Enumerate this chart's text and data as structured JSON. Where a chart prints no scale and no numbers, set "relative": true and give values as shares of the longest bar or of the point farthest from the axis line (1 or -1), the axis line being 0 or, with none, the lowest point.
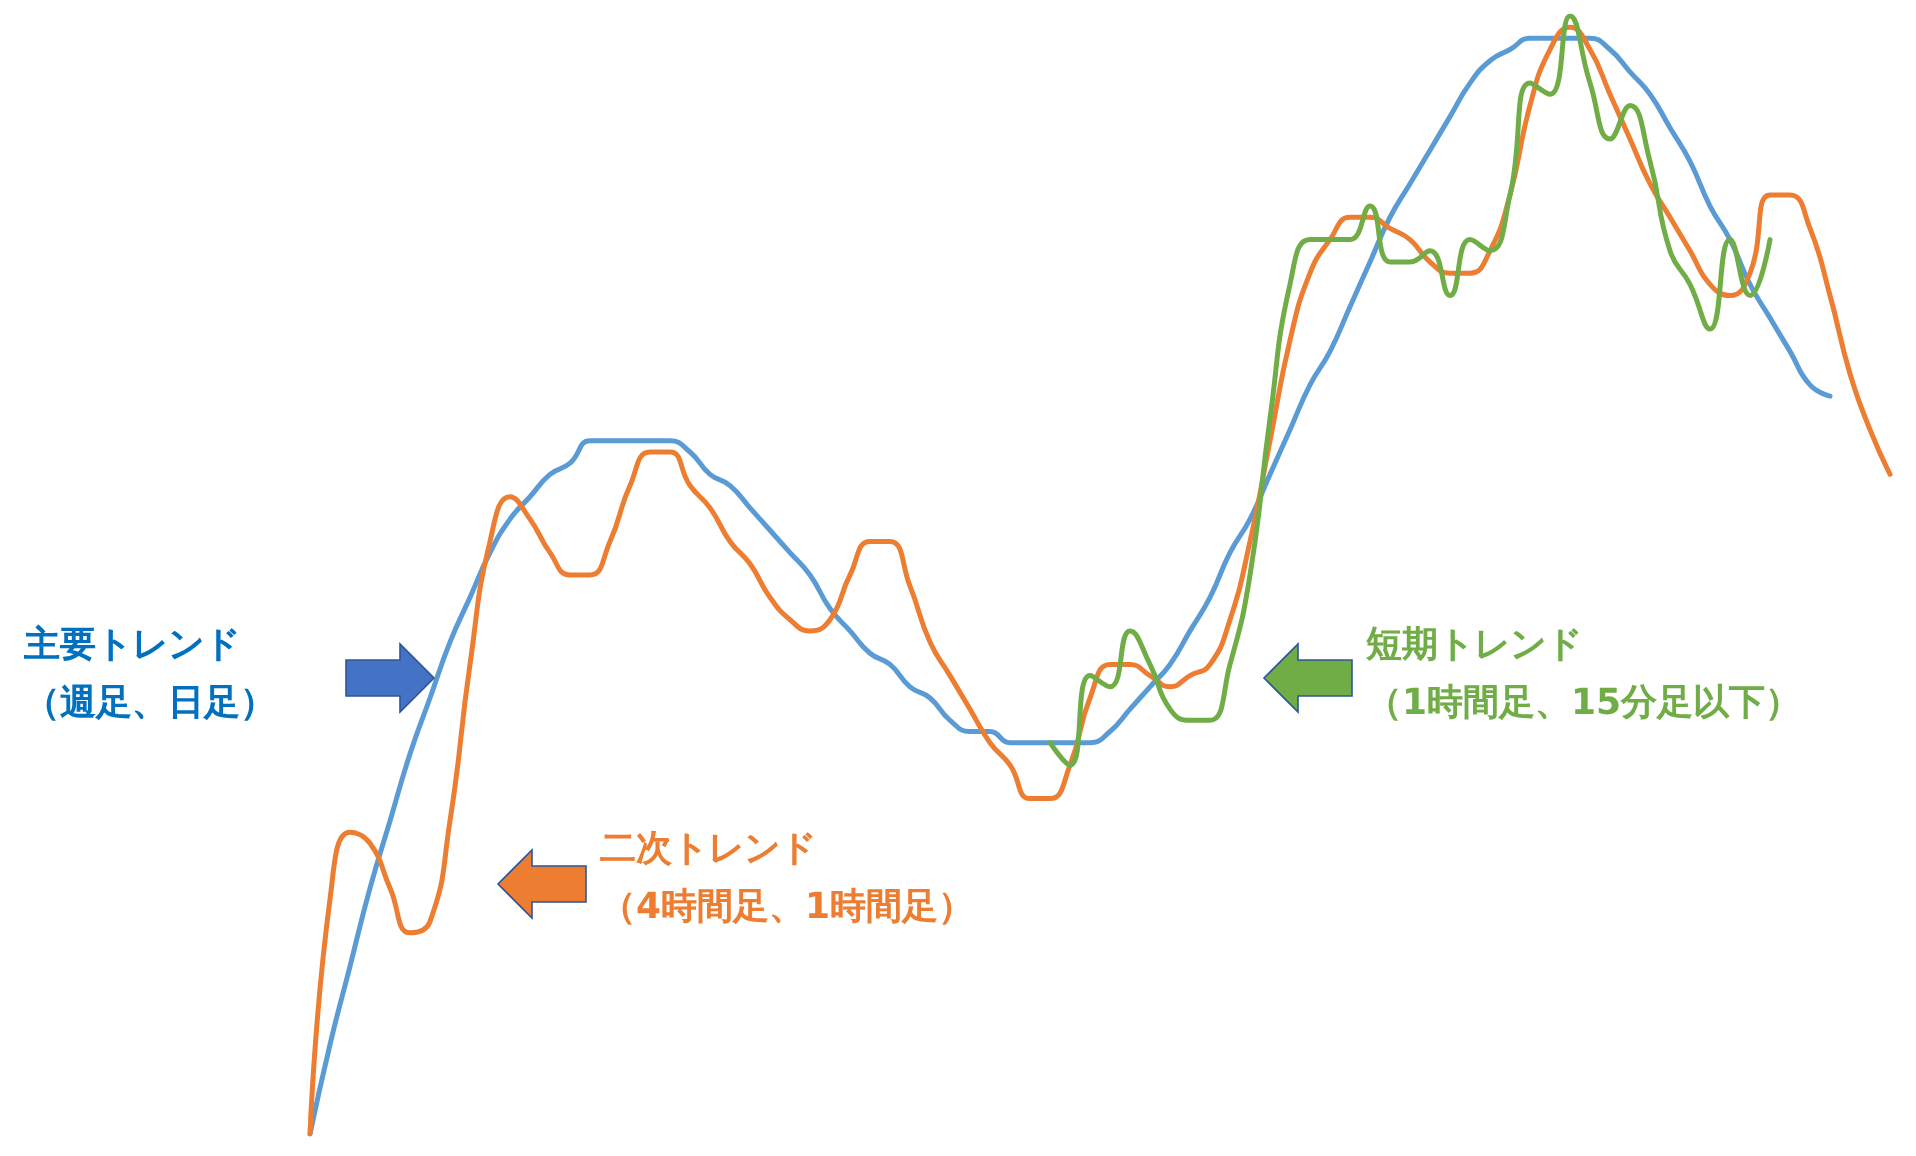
{
  "chart_data": {
    "type": "line",
    "relative": true,
    "marker": "none",
    "line_style": "solid",
    "categories": [
      null,
      null,
      null,
      null,
      null,
      null,
      null,
      null,
      null,
      null,
      null,
      null,
      null,
      null,
      null,
      null,
      null,
      null,
      null,
      null,
      null,
      null,
      null,
      null,
      null,
      null,
      null,
      null,
      null,
      null,
      null,
      null,
      null,
      null,
      null,
      null,
      null,
      null,
      null,
      null,
      null,
      null,
      null,
      null,
      null,
      null,
      null,
      null,
      null,
      null,
      null,
      null,
      null,
      null,
      null,
      null,
      null,
      null,
      null,
      null,
      null,
      null,
      null,
      null,
      null,
      null,
      null,
      null,
      null,
      null,
      null,
      null,
      null,
      null,
      null,
      null,
      null,
      null,
      null,
      null
    ],
    "series": [
      {
        "color": "#5b9bd5",
        "values": [
          0,
          0.08,
          0.15,
          0.22,
          0.28,
          0.34,
          0.39,
          0.44,
          0.48,
          0.52,
          0.55,
          0.57,
          0.59,
          0.6,
          0.62,
          0.62,
          0.62,
          0.62,
          0.62,
          0.61,
          0.59,
          0.58,
          0.56,
          0.54,
          0.52,
          0.5,
          0.47,
          0.45,
          0.43,
          0.42,
          0.4,
          0.39,
          0.37,
          0.36,
          0.36,
          0.35,
          0.35,
          0.35,
          0.35,
          0.35,
          0.36,
          0.38,
          0.4,
          0.42,
          0.45,
          0.48,
          0.52,
          0.55,
          0.59,
          0.63,
          0.67,
          0.7,
          0.74,
          0.78,
          0.82,
          0.85,
          0.88,
          0.91,
          0.94,
          0.96,
          0.97,
          0.98,
          0.98,
          0.98,
          0.98,
          0.97,
          0.95,
          0.93,
          0.9,
          0.87,
          0.83,
          0.8,
          0.76,
          0.73,
          0.7,
          0.67,
          0.66,
          null,
          null,
          null
        ]
      },
      {
        "color": "#ed7d31",
        "values": [
          0,
          0.21,
          0.27,
          0.26,
          0.22,
          0.18,
          0.19,
          0.28,
          0.42,
          0.53,
          0.57,
          0.55,
          0.52,
          0.5,
          0.5,
          0.53,
          0.58,
          0.61,
          0.61,
          0.58,
          0.56,
          0.53,
          0.51,
          0.48,
          0.46,
          0.45,
          0.46,
          0.5,
          0.53,
          0.53,
          0.49,
          0.44,
          0.41,
          0.38,
          0.35,
          0.33,
          0.3,
          0.3,
          0.33,
          0.39,
          0.42,
          0.42,
          0.41,
          0.4,
          0.41,
          0.42,
          0.46,
          0.53,
          0.62,
          0.71,
          0.77,
          0.8,
          0.82,
          0.82,
          0.81,
          0.8,
          0.78,
          0.77,
          0.77,
          0.79,
          0.84,
          0.92,
          0.97,
          0.99,
          0.97,
          0.93,
          0.89,
          0.85,
          0.82,
          0.79,
          0.76,
          0.75,
          0.77,
          0.84,
          0.84,
          0.81,
          0.75,
          0.68,
          0.63,
          0.59
        ]
      },
      {
        "color": "#70ad47",
        "values": [
          null,
          null,
          null,
          null,
          null,
          null,
          null,
          null,
          null,
          null,
          null,
          null,
          null,
          null,
          null,
          null,
          null,
          null,
          null,
          null,
          null,
          null,
          null,
          null,
          null,
          null,
          null,
          null,
          null,
          null,
          null,
          null,
          null,
          null,
          null,
          null,
          null,
          0.35,
          0.33,
          0.41,
          0.4,
          0.45,
          0.42,
          0.38,
          0.37,
          0.37,
          0.42,
          0.5,
          0.64,
          0.76,
          0.8,
          0.8,
          0.8,
          0.83,
          0.78,
          0.78,
          0.79,
          0.75,
          0.8,
          0.79,
          0.84,
          0.94,
          0.93,
          1,
          0.94,
          0.89,
          0.92,
          0.87,
          0.79,
          0.76,
          0.72,
          0.8,
          0.75,
          0.8,
          null,
          null,
          null,
          null,
          null,
          null
        ]
      }
    ],
    "annotations": [
      "主要トレンド（週足、日足）",
      "二次トレンド（4時間足、1時間足）",
      "短期トレンド（1時間足、15分足以下）"
    ]
  }
}
